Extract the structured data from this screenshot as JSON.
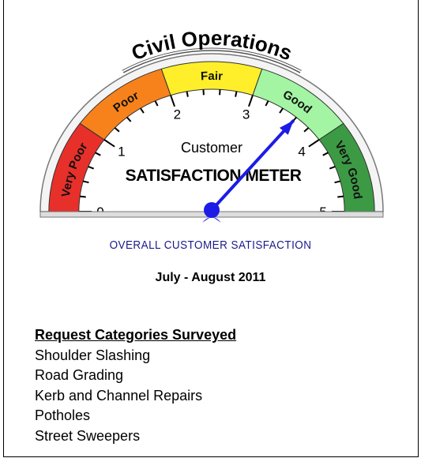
{
  "chart_data": {
    "type": "gauge",
    "title": "Civil Operations",
    "label_line1": "Customer",
    "label_line2": "SATISFACTION METER",
    "ylim": [
      0,
      5
    ],
    "yticks": [
      0,
      1,
      2,
      3,
      4,
      5
    ],
    "value": 3.6,
    "needle_color": "#1c1ce6",
    "bands": [
      {
        "name": "Very Poor",
        "from": 0,
        "to": 1,
        "color": "#e8302a"
      },
      {
        "name": "Poor",
        "from": 1,
        "to": 2,
        "color": "#f7821b"
      },
      {
        "name": "Fair",
        "from": 2,
        "to": 3,
        "color": "#ffef2a"
      },
      {
        "name": "Good",
        "from": 3,
        "to": 4,
        "color": "#a3f5a3"
      },
      {
        "name": "Very Good",
        "from": 4,
        "to": 5,
        "color": "#3c9a45"
      }
    ]
  },
  "caption": "OVERALL CUSTOMER SATISFACTION",
  "period": "July - August 2011",
  "list": {
    "heading": "Request Categories Surveyed",
    "items": [
      "Shoulder Slashing",
      "Road Grading",
      "Kerb and Channel Repairs",
      "Potholes",
      "Street Sweepers"
    ]
  }
}
